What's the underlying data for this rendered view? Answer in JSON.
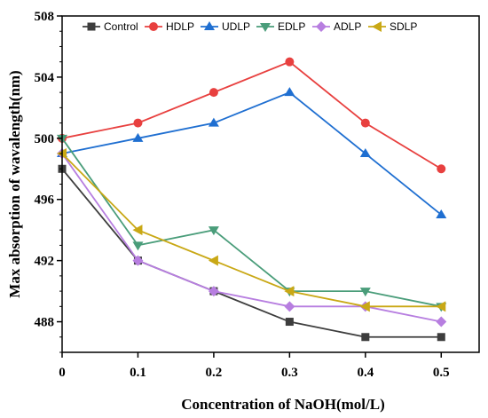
{
  "chart_data": {
    "type": "line",
    "title": "",
    "xlabel": "Concentration of NaOH(mol/L)",
    "ylabel": "Max absorption of wavalength(nm)",
    "x": [
      0,
      0.1,
      0.2,
      0.3,
      0.4,
      0.5
    ],
    "x_tick_labels": [
      "0",
      "0.1",
      "0.2",
      "0.3",
      "0.4",
      "0.5"
    ],
    "y_ticks": [
      488,
      492,
      496,
      500,
      504,
      508
    ],
    "xlim": [
      0,
      0.55
    ],
    "ylim": [
      486,
      508
    ],
    "grid": false,
    "legend_position": "top",
    "series": [
      {
        "name": "Control",
        "color": "#3d3d3d",
        "marker": "square",
        "values": [
          498,
          492,
          490,
          488,
          487,
          487
        ]
      },
      {
        "name": "HDLP",
        "color": "#e8403f",
        "marker": "circle",
        "values": [
          500,
          501,
          503,
          505,
          501,
          498
        ]
      },
      {
        "name": "UDLP",
        "color": "#1f6fd1",
        "marker": "triangle-up",
        "values": [
          499,
          500,
          501,
          503,
          499,
          495
        ]
      },
      {
        "name": "EDLP",
        "color": "#4a9d7a",
        "marker": "triangle-down",
        "values": [
          500,
          493,
          494,
          490,
          490,
          489
        ]
      },
      {
        "name": "ADLP",
        "color": "#b77ee0",
        "marker": "diamond",
        "values": [
          499,
          492,
          490,
          489,
          489,
          488
        ]
      },
      {
        "name": "SDLP",
        "color": "#c9a815",
        "marker": "triangle-left",
        "values": [
          499,
          494,
          492,
          490,
          489,
          489
        ]
      }
    ]
  }
}
